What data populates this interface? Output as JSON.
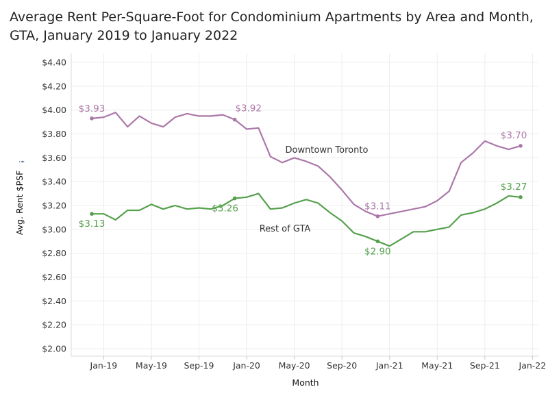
{
  "title_lines": [
    "Average Rent Per-Square-Foot for Condominium Apartments by Area and Month,",
    "GTA, January 2019 to January 2022"
  ],
  "chart_data": {
    "type": "line",
    "xlabel": "Month",
    "ylabel": "Avg. Rent $PSF",
    "ylim": [
      2.0,
      4.4
    ],
    "y_ticks": [
      2.0,
      2.2,
      2.4,
      2.6,
      2.8,
      3.0,
      3.2,
      3.4,
      3.6,
      3.8,
      4.0,
      4.2,
      4.4
    ],
    "y_tick_labels": [
      "$2.00",
      "$2.20",
      "$2.40",
      "$2.60",
      "$2.80",
      "$3.00",
      "$3.20",
      "$3.40",
      "$3.60",
      "$3.80",
      "$4.00",
      "$4.20",
      "$4.40"
    ],
    "x_tick_labels": [
      "Jan-19",
      "May-19",
      "Sep-19",
      "Jan-20",
      "May-20",
      "Sep-20",
      "Jan-21",
      "May-21",
      "Sep-21",
      "Jan-22"
    ],
    "x": [
      "2018-12",
      "2019-01",
      "2019-02",
      "2019-03",
      "2019-04",
      "2019-05",
      "2019-06",
      "2019-07",
      "2019-08",
      "2019-09",
      "2019-10",
      "2019-11",
      "2019-12",
      "2020-01",
      "2020-02",
      "2020-03",
      "2020-04",
      "2020-05",
      "2020-06",
      "2020-07",
      "2020-08",
      "2020-09",
      "2020-10",
      "2020-11",
      "2020-12",
      "2021-01",
      "2021-02",
      "2021-03",
      "2021-04",
      "2021-05",
      "2021-06",
      "2021-07",
      "2021-08",
      "2021-09",
      "2021-10",
      "2021-11",
      "2021-12"
    ],
    "grid": true,
    "series": [
      {
        "name": "Downtown Toronto",
        "color": "#ab77a8",
        "values": [
          3.93,
          3.94,
          3.98,
          3.86,
          3.95,
          3.89,
          3.86,
          3.94,
          3.97,
          3.95,
          3.95,
          3.96,
          3.92,
          3.84,
          3.85,
          3.61,
          3.56,
          3.6,
          3.57,
          3.53,
          3.44,
          3.33,
          3.21,
          3.15,
          3.11,
          3.13,
          3.15,
          3.17,
          3.19,
          3.24,
          3.32,
          3.56,
          3.64,
          3.74,
          3.7,
          3.67,
          3.7
        ]
      },
      {
        "name": "Rest of GTA",
        "color": "#55a04c",
        "values": [
          3.13,
          3.13,
          3.08,
          3.16,
          3.16,
          3.21,
          3.17,
          3.2,
          3.17,
          3.18,
          3.17,
          3.2,
          3.26,
          3.27,
          3.3,
          3.17,
          3.18,
          3.22,
          3.25,
          3.22,
          3.14,
          3.07,
          2.97,
          2.94,
          2.9,
          2.86,
          2.92,
          2.98,
          2.98,
          3.0,
          3.02,
          3.12,
          3.14,
          3.17,
          3.22,
          3.28,
          3.27
        ]
      }
    ],
    "annotations": [
      {
        "series": 0,
        "index": 0,
        "text": "$3.93",
        "pos": "above"
      },
      {
        "series": 0,
        "index": 12,
        "text": "$3.92",
        "pos": "above-right"
      },
      {
        "series": 0,
        "index": 24,
        "text": "$3.11",
        "pos": "above"
      },
      {
        "series": 0,
        "index": 36,
        "text": "$3.70",
        "pos": "above-left"
      },
      {
        "series": 1,
        "index": 0,
        "text": "$3.13",
        "pos": "below"
      },
      {
        "series": 1,
        "index": 12,
        "text": "$3.26",
        "pos": "below-left"
      },
      {
        "series": 1,
        "index": 24,
        "text": "$2.90",
        "pos": "below"
      },
      {
        "series": 1,
        "index": 36,
        "text": "$3.27",
        "pos": "above-left"
      }
    ],
    "series_labels": [
      {
        "series": 0,
        "text": "Downtown Toronto"
      },
      {
        "series": 1,
        "text": "Rest of GTA"
      }
    ]
  }
}
